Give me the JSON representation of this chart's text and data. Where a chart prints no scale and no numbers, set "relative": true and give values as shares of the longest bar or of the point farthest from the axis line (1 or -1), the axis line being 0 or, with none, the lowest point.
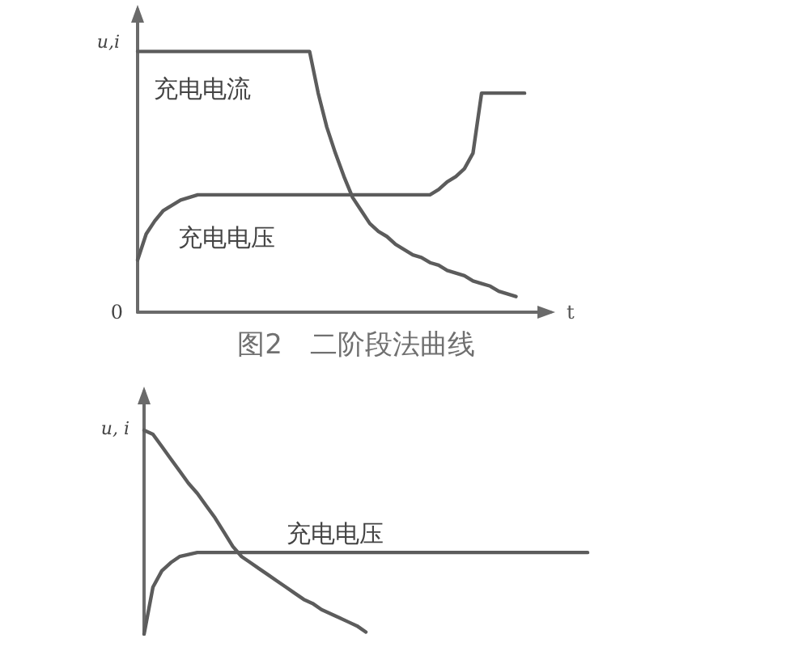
{
  "chart_data": [
    {
      "type": "line",
      "title": "图2　二阶段法曲线",
      "xlabel": "t",
      "ylabel": "u,i",
      "relative": true,
      "marker": "none",
      "annotations": [
        "0"
      ],
      "categories": [
        null,
        null,
        null,
        null,
        null,
        null,
        null,
        null,
        null,
        null,
        null,
        null,
        null,
        null,
        null,
        null,
        null,
        null,
        null,
        null,
        null,
        null,
        null,
        null,
        null,
        null,
        null,
        null,
        null,
        null,
        null,
        null,
        null,
        null,
        null,
        null,
        null,
        null,
        null,
        null,
        null,
        null,
        null,
        null,
        null,
        null,
        null,
        null,
        null
      ],
      "series": [
        {
          "name": "充电电流",
          "color": "#5c5c5c",
          "values": [
            1,
            1,
            1,
            1,
            1,
            1,
            1,
            1,
            1,
            1,
            1,
            1,
            1,
            1,
            1,
            1,
            1,
            1,
            1,
            1,
            1,
            0.84,
            0.71,
            0.61,
            0.52,
            0.44,
            0.39,
            0.34,
            0.31,
            0.29,
            0.26,
            0.24,
            0.22,
            0.21,
            0.19,
            0.18,
            0.16,
            0.15,
            0.14,
            0.12,
            0.11,
            0.1,
            0.08,
            0.07,
            0.06,
            null,
            null,
            null,
            null
          ]
        },
        {
          "name": "充电电压",
          "color": "#5c5c5c",
          "values": [
            0.2,
            0.3,
            0.35,
            0.39,
            0.41,
            0.43,
            0.44,
            0.45,
            0.45,
            0.45,
            0.45,
            0.45,
            0.45,
            0.45,
            0.45,
            0.45,
            0.45,
            0.45,
            0.45,
            0.45,
            0.45,
            0.45,
            0.45,
            0.45,
            0.45,
            0.45,
            0.45,
            0.45,
            0.45,
            0.45,
            0.45,
            0.45,
            0.45,
            0.45,
            0.45,
            0.47,
            0.5,
            0.52,
            0.55,
            0.61,
            0.84,
            0.84,
            0.84,
            0.84,
            0.84,
            0.84,
            null,
            null,
            null
          ]
        }
      ]
    },
    {
      "type": "line",
      "ylabel": "u, i",
      "relative": true,
      "marker": "none",
      "categories": [
        null,
        null,
        null,
        null,
        null,
        null,
        null,
        null,
        null,
        null,
        null,
        null,
        null,
        null,
        null,
        null,
        null,
        null,
        null,
        null,
        null,
        null,
        null,
        null,
        null,
        null,
        null,
        null,
        null,
        null,
        null,
        null,
        null,
        null,
        null,
        null,
        null,
        null,
        null,
        null,
        null,
        null,
        null,
        null,
        null,
        null,
        null,
        null,
        null,
        null,
        null
      ],
      "series": [
        {
          "color": "#5c5c5c",
          "values": [
            1,
            0.98,
            0.92,
            0.86,
            0.8,
            0.74,
            0.69,
            0.63,
            0.57,
            0.5,
            0.43,
            0.38,
            0.35,
            0.32,
            0.29,
            0.26,
            0.23,
            0.2,
            0.17,
            0.15,
            0.12,
            0.1,
            0.08,
            0.06,
            0.04,
            0.01,
            null,
            null,
            null,
            null,
            null,
            null,
            null,
            null,
            null,
            null,
            null,
            null,
            null,
            null,
            null,
            null,
            null,
            null,
            null,
            null,
            null,
            null,
            null,
            null,
            null
          ]
        },
        {
          "name": "充电电压",
          "color": "#5c5c5c",
          "values": [
            0,
            0.23,
            0.31,
            0.35,
            0.38,
            0.39,
            0.4,
            0.4,
            0.4,
            0.4,
            0.4,
            0.4,
            0.4,
            0.4,
            0.4,
            0.4,
            0.4,
            0.4,
            0.4,
            0.4,
            0.4,
            0.4,
            0.4,
            0.4,
            0.4,
            0.4,
            0.4,
            0.4,
            0.4,
            0.4,
            0.4,
            0.4,
            0.4,
            0.4,
            0.4,
            0.4,
            0.4,
            0.4,
            0.4,
            0.4,
            0.4,
            0.4,
            0.4,
            0.4,
            0.4,
            0.4,
            0.4,
            0.4,
            0.4,
            0.4,
            0.4
          ]
        }
      ]
    }
  ]
}
